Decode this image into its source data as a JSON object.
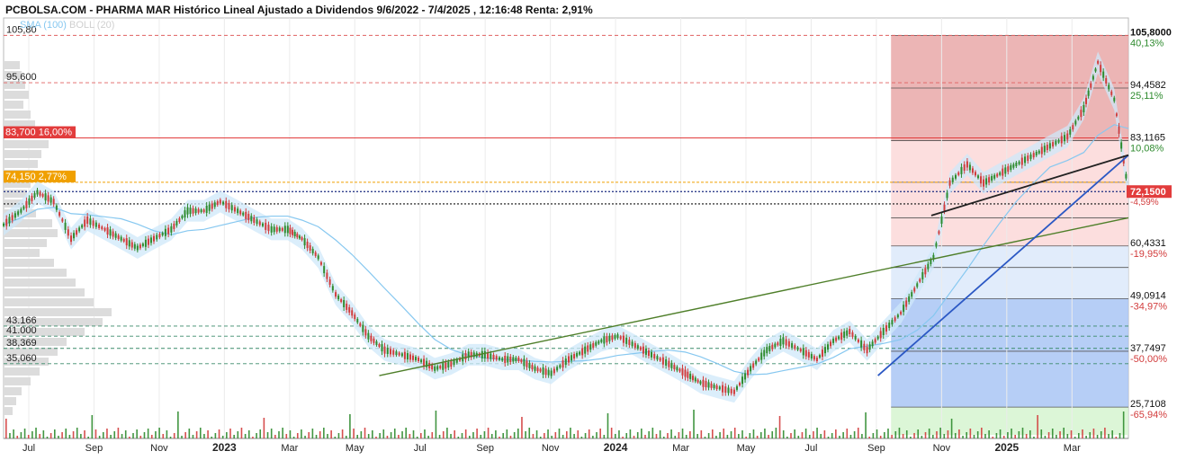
{
  "header": {
    "title": "PCBOLSA.COM - PHARMA MAR Histórico Lineal Ajustado a Dividendos 9/6/2022 - 7/4/2025 , 12:16:48 Renta: 2,91%"
  },
  "legend": {
    "sma_label": "SMA (100)",
    "boll_label": "BOLL (20)"
  },
  "colors": {
    "sma": "#87c8f0",
    "boll_fill": "#cfe8fa",
    "up": "#2e8b2e",
    "down": "#d23c3c",
    "red_level": "#e23c3c",
    "orange_level": "#f0a000",
    "green_trend": "#4f7f2a",
    "blue_trend": "#2b58c4",
    "black_trend": "#222222",
    "zone_red_dark": "#e9a8a8",
    "zone_red_light": "#fbd8d8",
    "zone_blue_light": "#dce9fa",
    "zone_blue": "#a9c6f5",
    "zone_green": "#d6f5d0"
  },
  "chart_data": {
    "type": "line",
    "x_tick_labels": [
      "Jul",
      "Sep",
      "Nov",
      "2023",
      "Mar",
      "May",
      "Jul",
      "Sep",
      "Nov",
      "2024",
      "Mar",
      "May",
      "Jul",
      "Sep",
      "Nov",
      "2025",
      "Mar"
    ],
    "x_tick_bold": [
      "2023",
      "2024",
      "2025"
    ],
    "y_range": [
      24,
      108
    ],
    "x_range": [
      "2022-06-09",
      "2025-04-07"
    ],
    "series": [
      {
        "x": [
          "2022-06-09",
          "2022-06-25",
          "2022-07-10",
          "2022-07-25",
          "2022-08-10",
          "2022-08-25",
          "2022-09-10",
          "2022-09-25",
          "2022-10-10",
          "2022-10-25",
          "2022-11-10",
          "2022-11-25",
          "2022-12-10",
          "2022-12-25",
          "2023-01-10",
          "2023-01-25",
          "2023-02-10",
          "2023-02-25",
          "2023-03-10",
          "2023-03-25",
          "2023-04-10",
          "2023-04-25",
          "2023-05-10",
          "2023-05-25",
          "2023-06-10",
          "2023-06-25",
          "2023-07-10",
          "2023-07-25",
          "2023-08-10",
          "2023-08-25",
          "2023-09-10",
          "2023-09-25",
          "2023-10-10",
          "2023-10-25",
          "2023-11-10",
          "2023-11-25",
          "2023-12-10",
          "2023-12-25",
          "2024-01-10",
          "2024-01-25",
          "2024-02-10",
          "2024-02-25",
          "2024-03-10",
          "2024-03-25",
          "2024-04-10",
          "2024-04-25",
          "2024-05-10",
          "2024-05-25",
          "2024-06-10",
          "2024-06-25",
          "2024-07-10",
          "2024-07-25",
          "2024-08-10",
          "2024-08-25",
          "2024-09-10",
          "2024-09-25",
          "2024-10-10",
          "2024-10-25",
          "2024-11-10",
          "2024-11-25",
          "2024-12-10",
          "2024-12-25",
          "2025-01-10",
          "2025-01-25",
          "2025-02-10",
          "2025-02-25",
          "2025-03-10",
          "2025-03-25",
          "2025-04-07"
        ],
        "values": [
          65,
          68,
          72,
          70,
          62,
          66,
          64,
          62,
          60,
          62,
          64,
          68,
          68,
          70,
          68,
          66,
          64,
          64,
          62,
          58,
          50,
          46,
          41,
          38,
          37,
          36,
          34,
          35,
          37,
          37,
          36,
          36,
          34,
          33,
          36,
          38,
          40,
          41,
          39,
          37,
          35,
          33,
          31,
          30,
          29,
          34,
          38,
          40,
          38,
          36,
          40,
          42,
          38,
          42,
          46,
          52,
          58,
          74,
          78,
          74,
          76,
          78,
          80,
          82,
          84,
          90,
          100,
          92,
          72.15
        ]
      }
    ],
    "levels_left": [
      {
        "label": "105,80",
        "value": 105.8
      },
      {
        "label": "95,600",
        "value": 95.6
      },
      {
        "label": "43.166",
        "value": 43.166
      },
      {
        "label": "41.000",
        "value": 41.0
      },
      {
        "label": "38,369",
        "value": 38.369
      },
      {
        "label": "35,060",
        "value": 35.06
      }
    ],
    "highlight_levels": [
      {
        "label": "83,700 16,00%",
        "value": 83.7,
        "color": "#e23c3c"
      },
      {
        "label": "74,150 2,77%",
        "value": 74.15,
        "color": "#f0a000"
      }
    ],
    "dotted_levels": [
      72.15,
      69.5
    ],
    "fib_levels": [
      {
        "price": "105,8000",
        "pct": "40,13%",
        "value": 105.8,
        "pct_color": "#2e8b2e"
      },
      {
        "price": "94,4582",
        "pct": "25,11%",
        "value": 94.4582,
        "pct_color": "#2e8b2e"
      },
      {
        "price": "83,1165",
        "pct": "10,08%",
        "value": 83.1165,
        "pct_color": "#2e8b2e"
      },
      {
        "price": "60,4331",
        "pct": "-19,95%",
        "value": 60.4331,
        "pct_color": "#d23c3c"
      },
      {
        "price": "49,0914",
        "pct": "-34,97%",
        "value": 49.0914,
        "pct_color": "#d23c3c"
      },
      {
        "price": "37,7497",
        "pct": "-50,00%",
        "value": 37.7497,
        "pct_color": "#d23c3c"
      },
      {
        "price": "25,7108",
        "pct": "-65,94%",
        "value": 25.7108,
        "pct_color": "#d23c3c"
      }
    ],
    "current_price": {
      "label": "72,1500",
      "value": 72.15,
      "pct": "-4,59%"
    },
    "fib_extra_lines": [
      74.15,
      66.5,
      55.8
    ],
    "trendlines": [
      {
        "name": "green",
        "from": [
          "2023-05-20",
          32.5
        ],
        "to": [
          "2025-04-07",
          66.5
        ]
      },
      {
        "name": "blue",
        "from": [
          "2024-08-20",
          32.5
        ],
        "to": [
          "2025-04-07",
          80
        ]
      },
      {
        "name": "black",
        "from": [
          "2024-10-08",
          67
        ],
        "to": [
          "2025-04-07",
          80
        ]
      }
    ],
    "fib_zone_start": "2024-09-01",
    "grid": true
  }
}
